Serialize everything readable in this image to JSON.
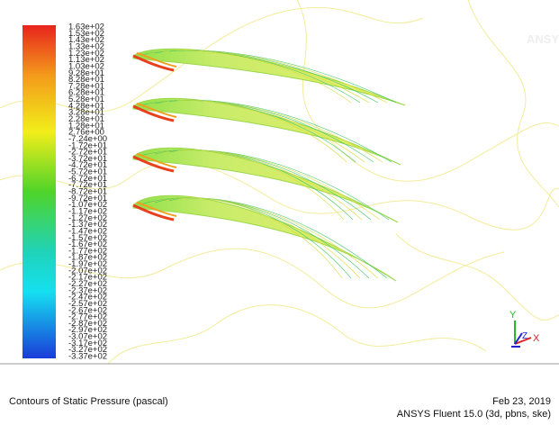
{
  "colorbar": {
    "labels": [
      "1.63e+02",
      "1.53e+02",
      "1.43e+02",
      "1.33e+02",
      "1.23e+02",
      "1.13e+02",
      "1.03e+02",
      "9.28e+01",
      "8.28e+01",
      "7.28e+01",
      "6.28e+01",
      "5.28e+01",
      "4.28e+01",
      "3.28e+01",
      "2.28e+01",
      "1.28e+01",
      "2.76e+00",
      "-7.24e+00",
      "-1.72e+01",
      "-2.72e+01",
      "-3.72e+01",
      "-4.72e+01",
      "-5.72e+01",
      "-6.72e+01",
      "-7.72e+01",
      "-8.72e+01",
      "-9.72e+01",
      "-1.07e+02",
      "-1.17e+02",
      "-1.27e+02",
      "-1.37e+02",
      "-1.47e+02",
      "-1.57e+02",
      "-1.67e+02",
      "-1.77e+02",
      "-1.87e+02",
      "-1.97e+02",
      "-2.07e+02",
      "-2.17e+02",
      "-2.27e+02",
      "-2.37e+02",
      "-2.47e+02",
      "-2.57e+02",
      "-2.67e+02",
      "-2.77e+02",
      "-2.87e+02",
      "-2.97e+02",
      "-3.07e+02",
      "-3.17e+02",
      "-3.27e+02",
      "-3.37e+02"
    ]
  },
  "logo": "ANSYS",
  "axes": {
    "y": "Y",
    "z": "Z",
    "x": "X"
  },
  "footer": {
    "title": "Contours of Static Pressure (pascal)",
    "date": "Feb 23, 2019",
    "software": "ANSYS Fluent 15.0 (3d, pbns, ske)"
  }
}
